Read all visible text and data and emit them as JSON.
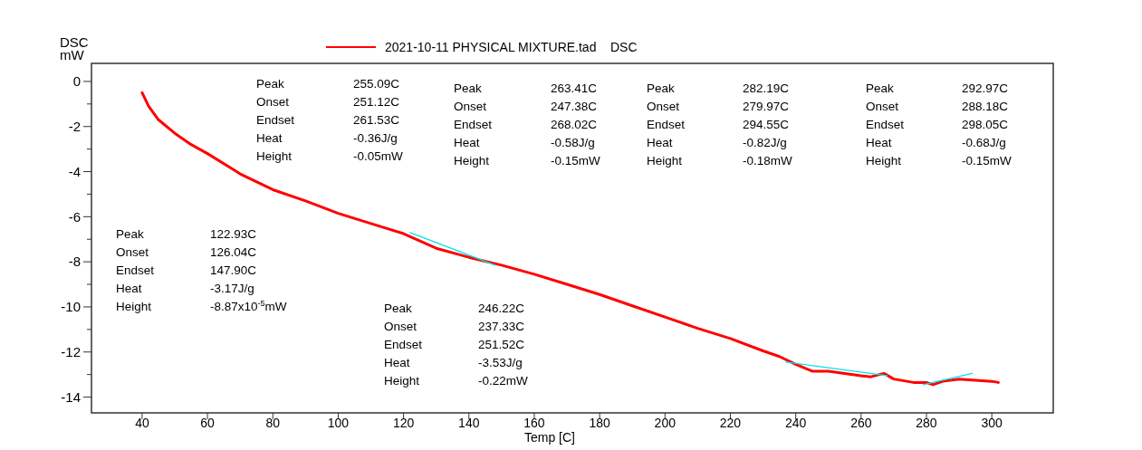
{
  "chart_data": {
    "type": "line",
    "xlabel": "Temp [C]",
    "ylabel": "DSC mW",
    "xlim": [
      24.5,
      318.8
    ],
    "ylim": [
      -14.7,
      0.8
    ],
    "xticks": [
      40,
      60,
      80,
      100,
      120,
      140,
      160,
      180,
      200,
      220,
      240,
      260,
      280,
      300
    ],
    "yticks": [
      0,
      {
        "value": -1,
        "label": null
      },
      -2,
      {
        "value": -3,
        "label": null
      },
      -4,
      {
        "value": -5,
        "label": null
      },
      -6,
      {
        "value": -7,
        "label": null
      },
      -8,
      {
        "value": -9,
        "label": null
      },
      -10,
      {
        "value": -11,
        "label": null
      },
      -12,
      {
        "value": -13,
        "label": null
      },
      -14
    ],
    "legend": "top",
    "marker": "none",
    "line_style": "solid",
    "series": [
      {
        "name": "2021-10-11 PHYSICAL MIXTURE.tad    DSC",
        "color": "#ff0000",
        "x": [
          40,
          42,
          45,
          50,
          55,
          60,
          70,
          80,
          90,
          100,
          110,
          120,
          130,
          140,
          150,
          160,
          170,
          180,
          190,
          200,
          210,
          220,
          230,
          235,
          240,
          245,
          250,
          255,
          260,
          263,
          267,
          270,
          276,
          280,
          282,
          285,
          290,
          295,
          300,
          302
        ],
        "values": [
          -0.5,
          -1.1,
          -1.7,
          -2.3,
          -2.8,
          -3.2,
          -4.1,
          -4.8,
          -5.3,
          -5.85,
          -6.3,
          -6.75,
          -7.4,
          -7.8,
          -8.15,
          -8.55,
          -9.0,
          -9.45,
          -9.95,
          -10.45,
          -10.95,
          -11.4,
          -11.95,
          -12.2,
          -12.55,
          -12.85,
          -12.85,
          -12.95,
          -13.05,
          -13.1,
          -12.95,
          -13.2,
          -13.35,
          -13.35,
          -13.45,
          -13.3,
          -13.2,
          -13.25,
          -13.3,
          -13.35
        ]
      },
      {
        "color": "#00e5ee",
        "x": [
          122,
          148
        ],
        "values": [
          -6.7,
          -8.15
        ]
      },
      {
        "color": "#00e5ee",
        "x": [
          237,
          268
        ],
        "values": [
          -12.45,
          -13.05
        ]
      },
      {
        "color": "#00e5ee",
        "x": [
          279,
          294
        ],
        "values": [
          -13.45,
          -12.95
        ]
      }
    ],
    "annotations": [
      "Peak",
      "Onset",
      "Endset",
      "Heat",
      "Height",
      "255.09C",
      "251.12C",
      "261.53C",
      "-0.36J/g",
      "-0.05mW",
      "Peak",
      "Onset",
      "Endset",
      "Heat",
      "Height",
      "263.41C",
      "247.38C",
      "268.02C",
      "-0.58J/g",
      "-0.15mW",
      "Peak",
      "Onset",
      "Endset",
      "Heat",
      "Height",
      "282.19C",
      "279.97C",
      "294.55C",
      "-0.82J/g",
      "-0.18mW",
      "Peak",
      "Onset",
      "Endset",
      "Heat",
      "Height",
      "292.97C",
      "288.18C",
      "298.05C",
      "-0.68J/g",
      "-0.15mW",
      "Peak",
      "Onset",
      "Endset",
      "Heat",
      "Height",
      "122.93C",
      "126.04C",
      "147.90C",
      "-3.17J/g",
      "-8.87x10$^{-5}$mW",
      "Peak",
      "Onset",
      "Endset",
      "Heat",
      "Height",
      "246.22C",
      "237.33C",
      "251.52C",
      "-3.53J/g",
      "-0.22mW"
    ]
  }
}
